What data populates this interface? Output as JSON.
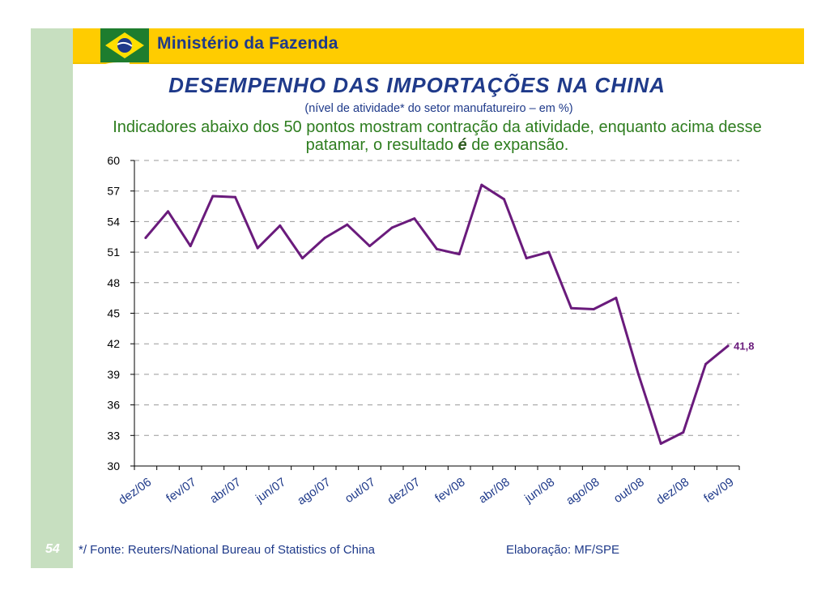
{
  "header": {
    "ministry": "Ministério da Fazenda"
  },
  "slide": {
    "page_number": "54",
    "title": "DESEMPENHO DAS IMPORTAÇÕES NA CHINA",
    "subtitle": "(nível de atividade* do setor manufatureiro – em %)",
    "description_part1": "Indicadores abaixo dos 50 pontos mostram contração da atividade, enquanto acima desse patamar, o resultado ",
    "description_emph": "é",
    "description_part2": " de expansão.",
    "source": "*/ Fonte: Reuters/National Bureau of Statistics of China",
    "credit": "Elaboração: MF/SPE"
  },
  "colors": {
    "line": "#6a1b7c",
    "header": "#ffcc00",
    "sidebar": "#c7dfc0",
    "title": "#1f3a8a"
  },
  "chart_data": {
    "type": "line",
    "title": "DESEMPENHO DAS IMPORTAÇÕES NA CHINA",
    "xlabel": "",
    "ylabel": "",
    "ylim": [
      30,
      60
    ],
    "yticks": [
      60,
      57,
      54,
      51,
      48,
      45,
      42,
      39,
      36,
      33,
      30
    ],
    "grid": true,
    "x_tick_labels": [
      "dez/06",
      "fev/07",
      "abr/07",
      "jun/07",
      "ago/07",
      "out/07",
      "dez/07",
      "fev/08",
      "abr/08",
      "jun/08",
      "ago/08",
      "out/08",
      "dez/08",
      "fev/09"
    ],
    "end_label": "41,8",
    "series": [
      {
        "name": "Importações",
        "values": [
          52.4,
          55.0,
          51.6,
          56.5,
          56.4,
          51.4,
          53.6,
          50.4,
          52.4,
          53.7,
          51.6,
          53.4,
          54.3,
          51.3,
          50.8,
          57.6,
          56.2,
          50.4,
          51.0,
          45.5,
          45.4,
          46.5,
          39.0,
          32.2,
          33.3,
          40.0,
          41.8
        ]
      }
    ]
  }
}
